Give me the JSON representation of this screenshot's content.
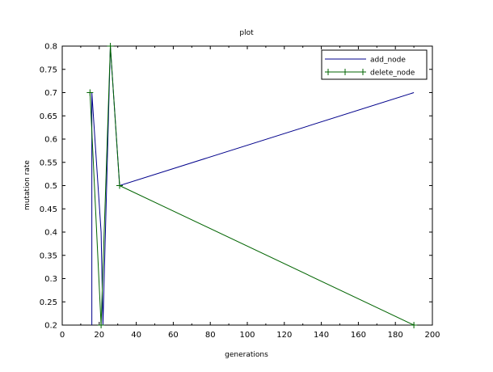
{
  "chart_data": {
    "type": "line",
    "title": "plot",
    "xlabel": "generations",
    "ylabel": "mutation rate",
    "xlim": [
      0,
      200
    ],
    "ylim": [
      0.2,
      0.8
    ],
    "x_ticks": [
      0,
      20,
      40,
      60,
      80,
      100,
      120,
      140,
      160,
      180,
      200
    ],
    "y_ticks": [
      0.2,
      0.25,
      0.3,
      0.35,
      0.4,
      0.45,
      0.5,
      0.55,
      0.6,
      0.65,
      0.7,
      0.75,
      0.8
    ],
    "x_tick_labels": [
      "0",
      "20",
      "40",
      "60",
      "80",
      "100",
      "120",
      "140",
      "160",
      "180",
      "200"
    ],
    "y_tick_labels": [
      "0.2",
      "0.25",
      "0.3",
      "0.35",
      "0.4",
      "0.45",
      "0.5",
      "0.55",
      "0.6",
      "0.65",
      "0.7",
      "0.75",
      "0.8"
    ],
    "grid": false,
    "legend_position": "top-right",
    "series": [
      {
        "name": "add_node",
        "color": "#00008b",
        "marker": "none",
        "points": [
          [
            16,
            0.2
          ],
          [
            16,
            0.7
          ],
          [
            21,
            0.4
          ],
          [
            22,
            0.2
          ],
          [
            26,
            0.8
          ],
          [
            31,
            0.5
          ],
          [
            190,
            0.7
          ]
        ]
      },
      {
        "name": "delete_node",
        "color": "#006400",
        "marker": "plus",
        "points": [
          [
            15,
            0.7
          ],
          [
            21,
            0.2
          ],
          [
            26,
            0.8
          ],
          [
            31,
            0.5
          ],
          [
            190,
            0.2
          ]
        ]
      }
    ]
  }
}
